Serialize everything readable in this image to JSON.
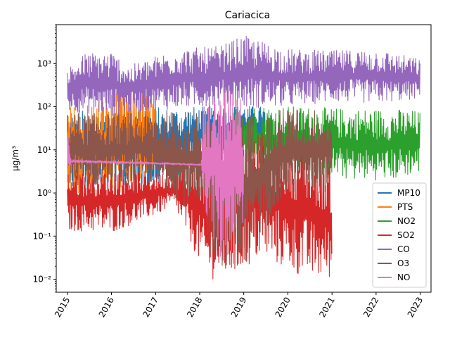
{
  "chart_data": {
    "type": "line",
    "title": "Cariacica",
    "xlabel": "",
    "ylabel": "µg/m³",
    "yscale": "log",
    "ylim": [
      0.005,
      8000
    ],
    "xlim": [
      "2014-10-01",
      "2023-04-01"
    ],
    "x_ticks": [
      "2015",
      "2016",
      "2017",
      "2018",
      "2019",
      "2020",
      "2021",
      "2022",
      "2023"
    ],
    "y_ticks": [
      "10⁻²",
      "10⁻¹",
      "10⁰",
      "10¹",
      "10²",
      "10³"
    ],
    "legend_position": "lower right",
    "grid": false,
    "series": [
      {
        "name": "MP10",
        "color": "#1f77b4",
        "active_range": [
          "2015-01-01",
          "2019-07-01"
        ],
        "envelope": [
          {
            "x": "2015-01-01",
            "low": 1.0,
            "high": 80
          },
          {
            "x": "2016-01-01",
            "low": 1.0,
            "high": 90
          },
          {
            "x": "2017-01-01",
            "low": 1.0,
            "high": 100
          },
          {
            "x": "2018-01-01",
            "low": 5,
            "high": 100
          },
          {
            "x": "2019-01-01",
            "low": 10,
            "high": 110
          },
          {
            "x": "2019-07-01",
            "low": 10,
            "high": 100
          }
        ]
      },
      {
        "name": "PTS",
        "color": "#ff7f0e",
        "active_range": [
          "2015-01-01",
          "2017-01-01"
        ],
        "envelope": [
          {
            "x": "2015-01-01",
            "low": 1.0,
            "high": 100
          },
          {
            "x": "2015-10-01",
            "low": 1.0,
            "high": 150
          },
          {
            "x": "2016-05-01",
            "low": 1.0,
            "high": 350
          },
          {
            "x": "2016-09-01",
            "low": 2.0,
            "high": 250
          },
          {
            "x": "2017-01-01",
            "low": 3.0,
            "high": 150
          }
        ]
      },
      {
        "name": "NO2",
        "color": "#2ca02c",
        "active_range": [
          "2018-10-01",
          "2023-01-01"
        ],
        "envelope": [
          {
            "x": "2018-10-01",
            "low": 5,
            "high": 100
          },
          {
            "x": "2019-06-01",
            "low": 3,
            "high": 110
          },
          {
            "x": "2020-06-01",
            "low": 3,
            "high": 100
          },
          {
            "x": "2021-06-01",
            "low": 2,
            "high": 90
          },
          {
            "x": "2022-06-01",
            "low": 2,
            "high": 90
          },
          {
            "x": "2023-01-01",
            "low": 3,
            "high": 80
          }
        ]
      },
      {
        "name": "SO2",
        "color": "#d62728",
        "active_range": [
          "2015-01-01",
          "2021-01-01"
        ],
        "envelope": [
          {
            "x": "2015-01-01",
            "low": 0.13,
            "high": 3.5
          },
          {
            "x": "2016-01-01",
            "low": 0.12,
            "high": 4
          },
          {
            "x": "2017-01-01",
            "low": 0.3,
            "high": 3
          },
          {
            "x": "2017-06-01",
            "low": 0.5,
            "high": 3
          },
          {
            "x": "2018-03-01",
            "low": 0.01,
            "high": 10
          },
          {
            "x": "2018-09-01",
            "low": 0.01,
            "high": 20
          },
          {
            "x": "2019-06-01",
            "low": 0.03,
            "high": 25
          },
          {
            "x": "2020-06-01",
            "low": 0.01,
            "high": 15
          },
          {
            "x": "2021-01-01",
            "low": 0.01,
            "high": 5
          }
        ]
      },
      {
        "name": "CO",
        "color": "#9467bd",
        "active_range": [
          "2015-01-01",
          "2023-01-01"
        ],
        "envelope": [
          {
            "x": "2015-01-01",
            "low": 80,
            "high": 800
          },
          {
            "x": "2015-06-01",
            "low": 70,
            "high": 1800
          },
          {
            "x": "2016-01-01",
            "low": 60,
            "high": 2000
          },
          {
            "x": "2016-06-01",
            "low": 70,
            "high": 900
          },
          {
            "x": "2017-06-01",
            "low": 90,
            "high": 2200
          },
          {
            "x": "2018-06-01",
            "low": 100,
            "high": 2500
          },
          {
            "x": "2019-01-01",
            "low": 90,
            "high": 4500
          },
          {
            "x": "2020-01-01",
            "low": 100,
            "high": 2200
          },
          {
            "x": "2021-01-01",
            "low": 130,
            "high": 2000
          },
          {
            "x": "2022-01-01",
            "low": 120,
            "high": 2200
          },
          {
            "x": "2023-01-01",
            "low": 150,
            "high": 1300
          }
        ]
      },
      {
        "name": "O3",
        "color": "#8c564b",
        "active_range": [
          "2015-01-01",
          "2021-01-01"
        ],
        "envelope": [
          {
            "x": "2015-01-01",
            "low": 1.5,
            "high": 70
          },
          {
            "x": "2016-01-01",
            "low": 1.5,
            "high": 70
          },
          {
            "x": "2017-01-01",
            "low": 1.5,
            "high": 80
          },
          {
            "x": "2018-01-01",
            "low": 0.3,
            "high": 80
          },
          {
            "x": "2018-06-01",
            "low": 0.02,
            "high": 60
          },
          {
            "x": "2019-01-01",
            "low": 0.02,
            "high": 70
          },
          {
            "x": "2020-01-01",
            "low": 1.0,
            "high": 90
          },
          {
            "x": "2021-01-01",
            "low": 1.0,
            "high": 90
          }
        ]
      },
      {
        "name": "NO",
        "color": "#e377c2",
        "active_range": [
          "2015-01-01",
          "2019-01-01"
        ],
        "envelope": [
          {
            "x": "2015-01-01",
            "low": 1.2,
            "high": 40
          },
          {
            "x": "2015-02-01",
            "low": 5,
            "high": 6
          },
          {
            "x": "2017-06-01",
            "low": 4.5,
            "high": 5
          },
          {
            "x": "2018-01-15",
            "low": 4.3,
            "high": 4.7
          },
          {
            "x": "2018-02-01",
            "low": 0.5,
            "high": 150
          },
          {
            "x": "2018-07-01",
            "low": 0.02,
            "high": 300
          },
          {
            "x": "2019-01-01",
            "low": 0.1,
            "high": 200
          }
        ]
      }
    ]
  }
}
